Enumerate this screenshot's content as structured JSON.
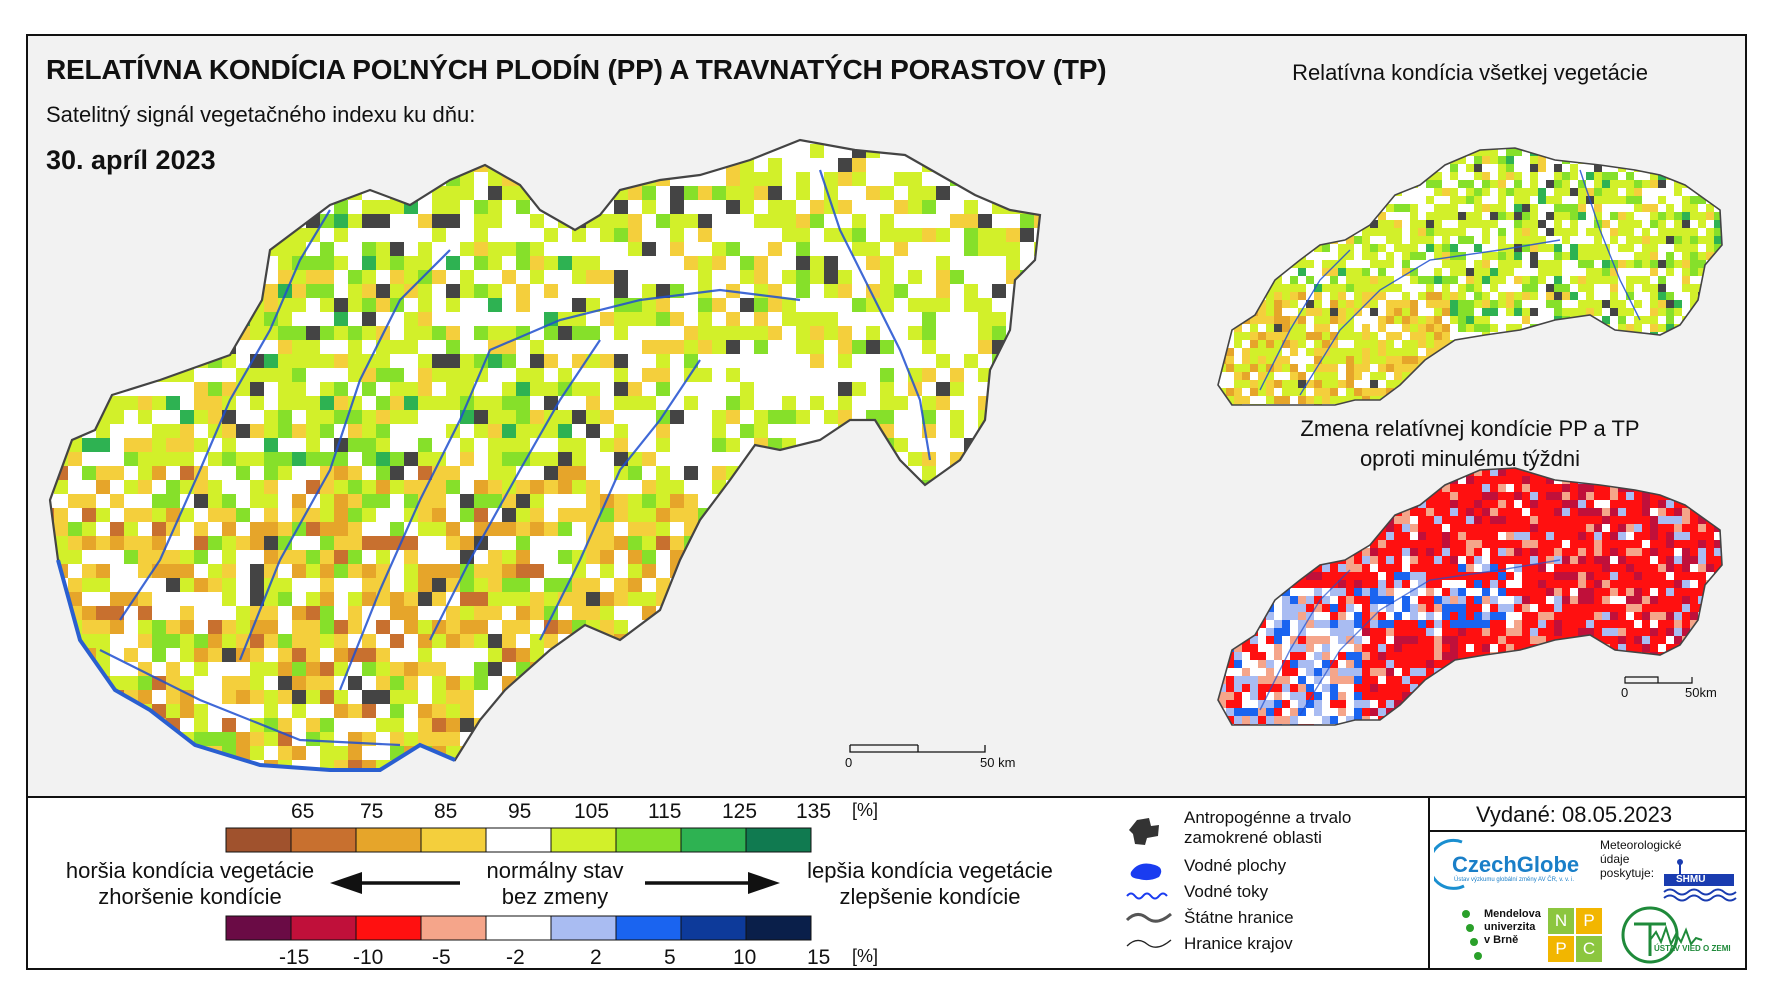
{
  "header": {
    "title": "RELATÍVNA KONDÍCIA POĽNÝCH PLODÍN (PP) A TRAVNATÝCH PORASTOV (TP)",
    "subtitle": "Satelitný signál vegetačného indexu ku dňu:",
    "date": "30. apríl 2023"
  },
  "side_maps": {
    "top_title": "Relatívna kondícia všetkej vegetácie",
    "bottom_title_line1": "Zmena relatívnej kondície PP a TP",
    "bottom_title_line2": "oproti minulému týždni"
  },
  "scale_bars": {
    "main": {
      "zero": "0",
      "end": "50 km"
    },
    "small": {
      "zero": "0",
      "end": "50km"
    }
  },
  "legend": {
    "condition": {
      "ticks": [
        "65",
        "75",
        "85",
        "95",
        "105",
        "115",
        "125",
        "135",
        "[%]"
      ],
      "colors": [
        "#a0522d",
        "#c8702f",
        "#e6a52a",
        "#f4cf3c",
        "#ffffff",
        "#d2f02a",
        "#86e02a",
        "#2eb252",
        "#107a50"
      ]
    },
    "change": {
      "ticks": [
        "-15",
        "-10",
        "-5",
        "-2",
        "2",
        "5",
        "10",
        "15",
        "[%]"
      ],
      "colors": [
        "#6a0b45",
        "#c0103a",
        "#ff1010",
        "#f5a58a",
        "#ffffff",
        "#a9bcf2",
        "#1a64f0",
        "#0d3a9a",
        "#0a1f4a"
      ]
    },
    "left_line1": "horšia kondícia vegetácie",
    "left_line2": "zhoršenie kondície",
    "middle_line1": "normálny stav",
    "middle_line2": "bez zmeny",
    "right_line1": "lepšia kondícia vegetácie",
    "right_line2": "zlepšenie kondície"
  },
  "map_legend": {
    "items": [
      {
        "icon": "anthropogenic-area-icon",
        "label": "Antropogénne a trvalo\nzamokrené oblasti"
      },
      {
        "icon": "water-body-icon",
        "label": "Vodné plochy"
      },
      {
        "icon": "river-icon",
        "label": "Vodné toky"
      },
      {
        "icon": "state-border-icon",
        "label": "Štátne hranice"
      },
      {
        "icon": "region-border-icon",
        "label": "Hranice krajov"
      }
    ]
  },
  "issued": "Vydané: 08.05.2023",
  "logos": {
    "czechglobe": "CzechGlobe",
    "czechglobe_sub": "Ústav výzkumu globální změny AV ČR, v. v. i.",
    "shmu_caption": "Meteorologické\núdaje\nposkytuje:",
    "shmu": "SHMU",
    "mendelu": "Mendelova\nuniverzita\nv Brně",
    "nppc": [
      "N",
      "P",
      "P",
      "C"
    ],
    "uvz": "ÚSTAV VIED O ZEMI"
  }
}
